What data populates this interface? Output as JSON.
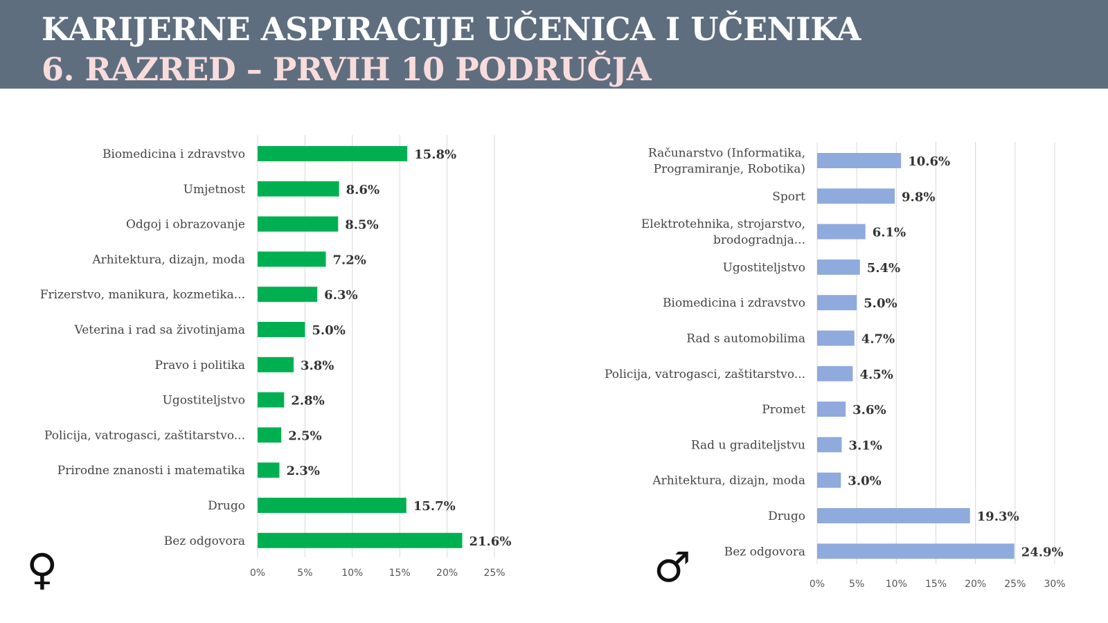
{
  "header": {
    "title_line1": "KARIJERNE ASPIRACIJE UČENICA I UČENIKA",
    "title_line2": "6. RAZRED – PRVIH 10 PODRUČJA"
  },
  "symbols": {
    "female": "♀",
    "male": "♂"
  },
  "colors": {
    "header_bg": "#5f6e7f",
    "female_bar": "#00b050",
    "male_bar": "#8faadc",
    "subtitle": "#f8dcdc"
  },
  "chart_data": [
    {
      "type": "bar",
      "orientation": "horizontal",
      "group": "female",
      "categories": [
        "Biomedicina i zdravstvo",
        "Umjetnost",
        "Odgoj i obrazovanje",
        "Arhitektura, dizajn, moda",
        "Frizerstvo, manikura, kozmetika...",
        "Veterina i rad sa životinjama",
        "Pravo i politika",
        "Ugostiteljstvo",
        "Policija, vatrogasci, zaštitarstvo...",
        "Prirodne znanosti i matematika",
        "Drugo",
        "Bez odgovora"
      ],
      "values": [
        15.8,
        8.6,
        8.5,
        7.2,
        6.3,
        5.0,
        3.8,
        2.8,
        2.5,
        2.3,
        15.7,
        21.6
      ],
      "value_labels": [
        "15.8%",
        "8.6%",
        "8.5%",
        "7.2%",
        "6.3%",
        "5.0%",
        "3.8%",
        "2.8%",
        "2.5%",
        "2.3%",
        "15.7%",
        "21.6%"
      ],
      "xticks": [
        "0%",
        "5%",
        "10%",
        "15%",
        "20%",
        "25%"
      ],
      "xlim": [
        0,
        25
      ],
      "grid": true,
      "color": "#00b050"
    },
    {
      "type": "bar",
      "orientation": "horizontal",
      "group": "male",
      "categories": [
        [
          "Računarstvo (Informatika,",
          "Programiranje, Robotika)"
        ],
        "Sport",
        [
          "Elektrotehnika, strojarstvo,",
          "brodogradnja..."
        ],
        "Ugostiteljstvo",
        "Biomedicina i zdravstvo",
        "Rad s automobilima",
        "Policija, vatrogasci, zaštitarstvo...",
        "Promet",
        "Rad u graditeljstvu",
        "Arhitektura, dizajn, moda",
        "Drugo",
        "Bez odgovora"
      ],
      "values": [
        10.6,
        9.8,
        6.1,
        5.4,
        5.0,
        4.7,
        4.5,
        3.6,
        3.1,
        3.0,
        19.3,
        24.9
      ],
      "value_labels": [
        "10.6%",
        "9.8%",
        "6.1%",
        "5.4%",
        "5.0%",
        "4.7%",
        "4.5%",
        "3.6%",
        "3.1%",
        "3.0%",
        "19.3%",
        "24.9%"
      ],
      "xticks": [
        "0%",
        "5%",
        "10%",
        "15%",
        "20%",
        "25%",
        "30%"
      ],
      "xlim": [
        0,
        30
      ],
      "grid": true,
      "color": "#8faadc"
    }
  ]
}
